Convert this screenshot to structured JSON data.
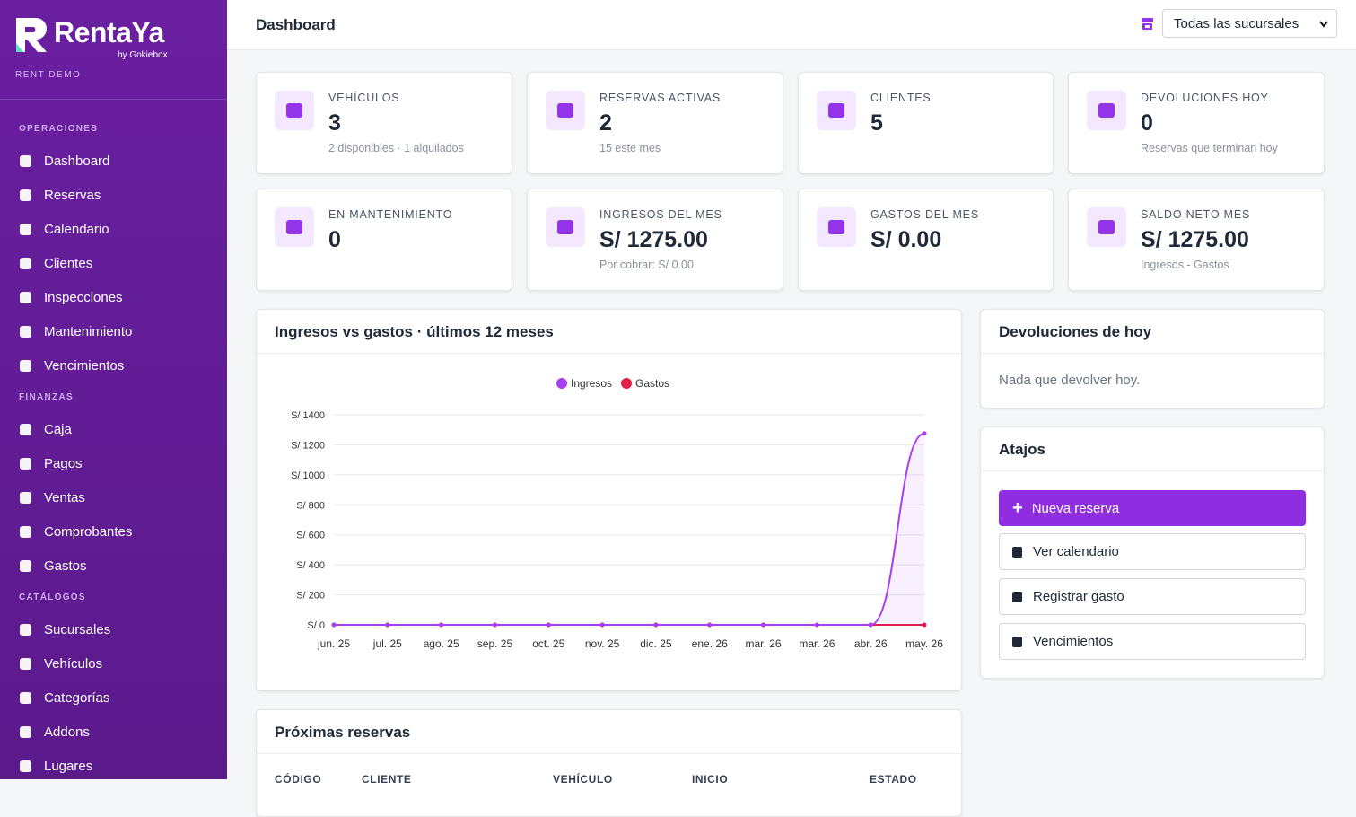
{
  "sidebar": {
    "brand": "RentaYa",
    "brand_sub": "by Gokiebox",
    "tenant": "RENT DEMO",
    "sections": [
      {
        "title": "OPERACIONES",
        "items": [
          "Dashboard",
          "Reservas",
          "Calendario",
          "Clientes",
          "Inspecciones",
          "Mantenimiento",
          "Vencimientos"
        ]
      },
      {
        "title": "FINANZAS",
        "items": [
          "Caja",
          "Pagos",
          "Ventas",
          "Comprobantes",
          "Gastos"
        ]
      },
      {
        "title": "CATÁLOGOS",
        "items": [
          "Sucursales",
          "Vehículos",
          "Categorías",
          "Addons",
          "Lugares"
        ]
      }
    ]
  },
  "header": {
    "title": "Dashboard",
    "branch_select": "Todas las sucursales"
  },
  "stats": [
    {
      "label": "VEHÍCULOS",
      "value": 3,
      "note": "2 disponibles · 1 alquilados"
    },
    {
      "label": "RESERVAS ACTIVAS",
      "value": 2,
      "note": "15 este mes"
    },
    {
      "label": "CLIENTES",
      "value": 5
    },
    {
      "label": "DEVOLUCIONES HOY",
      "value": 0,
      "note": "Reservas que terminan hoy"
    },
    {
      "label": "EN MANTENIMIENTO",
      "value": 0
    },
    {
      "label": "INGRESOS DEL MES",
      "value": "S/ 1275.00",
      "note": "Por cobrar: S/ 0.00"
    },
    {
      "label": "GASTOS DEL MES",
      "value": "S/ 0.00"
    },
    {
      "label": "SALDO NETO MES",
      "value": "S/ 1275.00",
      "note": "Ingresos - Gastos"
    }
  ],
  "chart_data": {
    "type": "line",
    "title": "Ingresos vs gastos · últimos 12 meses",
    "categories": [
      "jun. 25",
      "jul. 25",
      "ago. 25",
      "sep. 25",
      "oct. 25",
      "nov. 25",
      "dic. 25",
      "ene. 26",
      "mar. 26",
      "mar. 26",
      "abr. 26",
      "may. 26"
    ],
    "series": [
      {
        "name": "Ingresos",
        "color": "#a83ff0",
        "values": [
          0,
          0,
          0,
          0,
          0,
          0,
          0,
          0,
          0,
          0,
          0,
          1275
        ]
      },
      {
        "name": "Gastos",
        "color": "#e11d48",
        "values": [
          0,
          0,
          0,
          0,
          0,
          0,
          0,
          0,
          0,
          0,
          0,
          0
        ]
      }
    ],
    "ylim": [
      0,
      1400
    ],
    "yticks": [
      {
        "value": 0,
        "label": "S/ 0"
      },
      {
        "value": 200,
        "label": "S/ 200"
      },
      {
        "value": 400,
        "label": "S/ 400"
      },
      {
        "value": 600,
        "label": "S/ 600"
      },
      {
        "value": 800,
        "label": "S/ 800"
      },
      {
        "value": 1000,
        "label": "S/ 1000"
      },
      {
        "value": 1200,
        "label": "S/ 1200"
      },
      {
        "value": 1400,
        "label": "S/ 1400"
      }
    ],
    "grid": true,
    "legend": "top"
  },
  "returns": {
    "title": "Devoluciones de hoy",
    "empty": "Nada que devolver hoy."
  },
  "shortcuts": {
    "title": "Atajos",
    "items": [
      "Nueva reserva",
      "Ver calendario",
      "Registrar gasto",
      "Vencimientos"
    ]
  },
  "upcoming": {
    "title": "Próximas reservas",
    "columns": [
      "CÓDIGO",
      "CLIENTE",
      "VEHÍCULO",
      "INICIO",
      "ESTADO"
    ]
  }
}
